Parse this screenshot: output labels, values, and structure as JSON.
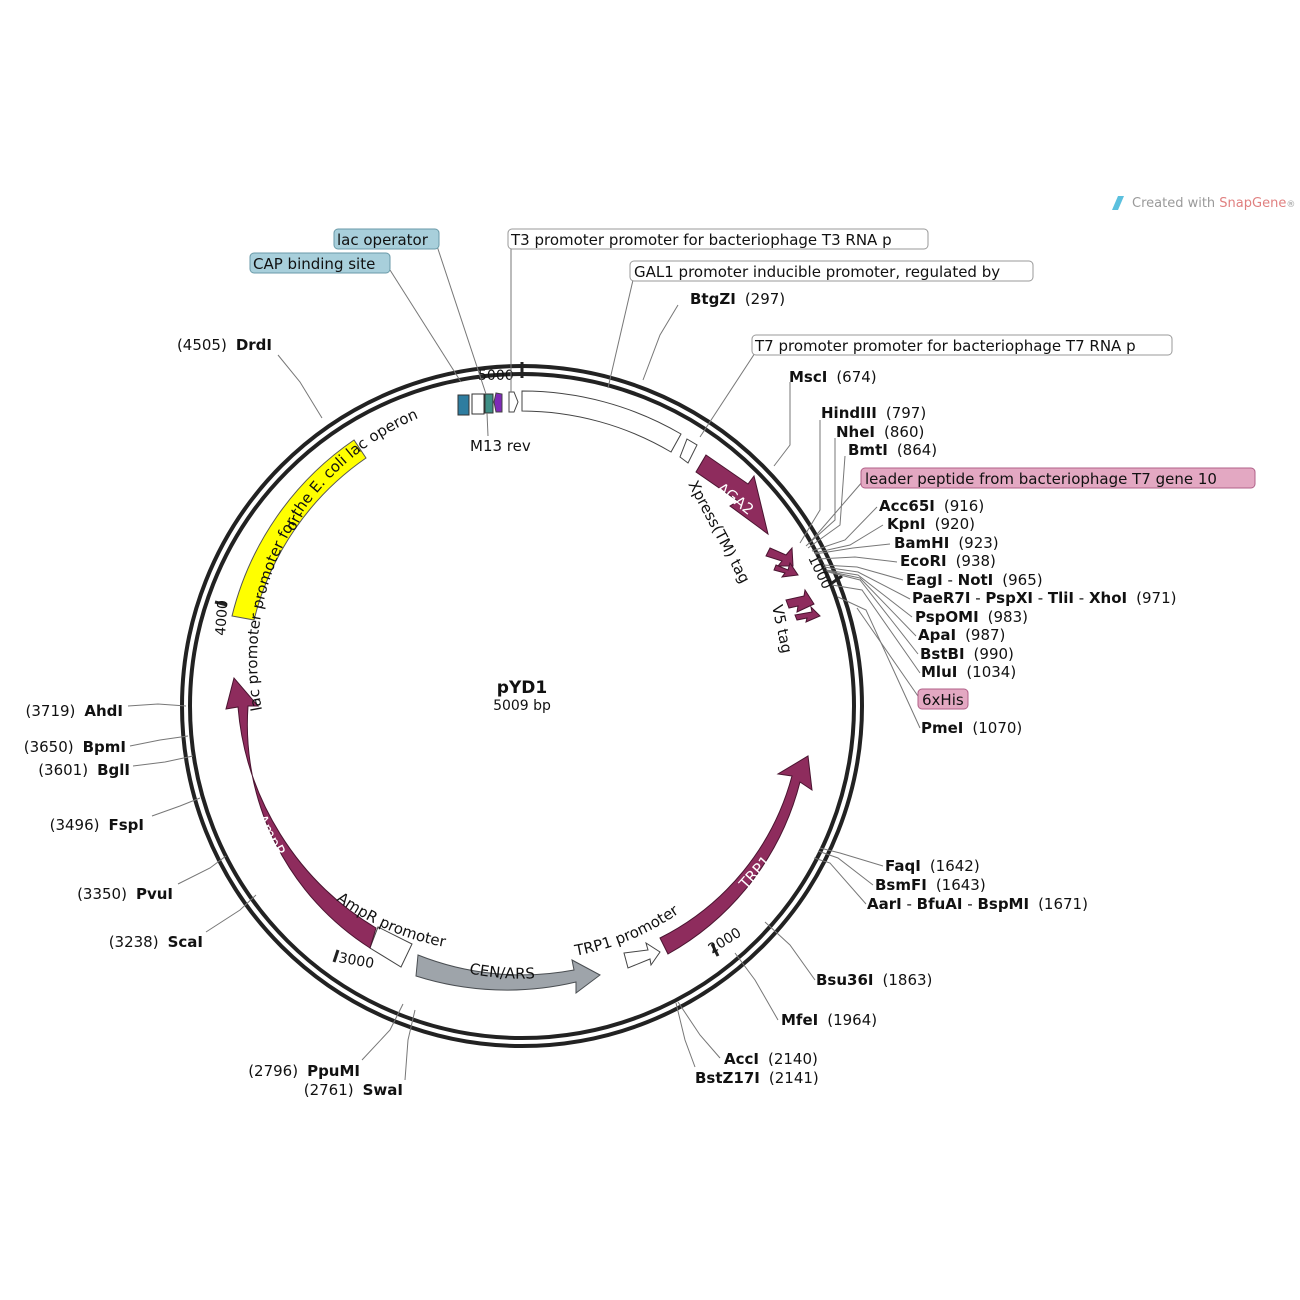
{
  "watermark": {
    "prefix": "Created with ",
    "brand": "SnapGene",
    "reg": "®"
  },
  "plasmid": {
    "name": "pYD1",
    "length": "5009 bp"
  },
  "ticks": [
    "1000",
    "2000",
    "3000",
    "4000",
    "5000"
  ],
  "colors": {
    "orange_bg": "#a8cfdb",
    "pink_bg": "#e3a8c2",
    "arrow_magenta": "#8e2c5d",
    "ori_yellow": "#ffff00",
    "cen_gray": "#9ea4aa",
    "operator_teal": "#2e7da0",
    "m13_purple": "#7e2ab8"
  },
  "callouts": {
    "lac_operator": "lac operator",
    "cap_site": "CAP binding site",
    "t3_promoter": "T3 promoter promoter for bacteriophage T3 RNA p",
    "gal1_promoter": "GAL1 promoter inducible promoter, regulated by",
    "t7_promoter": "T7 promoter promoter for bacteriophage T7 RNA p",
    "leader_peptide": "leader peptide from bacteriophage T7 gene 10",
    "six_his": "6xHis"
  },
  "features": {
    "aga2": "AGA2",
    "xpress": "Xpress(TM) tag",
    "v5": "V5 tag",
    "trp1": "TRP1",
    "trp1_promoter": "TRP1 promoter",
    "cen_ars": "CEN/ARS",
    "ampr_promoter": "AmpR promoter",
    "ampr": "AmpR",
    "ori": "ori",
    "lac_promoter": "lac promoter promoter for the E. coli lac operon",
    "m13_rev": "M13 rev"
  },
  "sites": {
    "btgzi": {
      "name": "BtgZI",
      "pos": "(297)"
    },
    "msci": {
      "name": "MscI",
      "pos": "(674)"
    },
    "hindiii": {
      "name": "HindIII",
      "pos": "(797)"
    },
    "nhei": {
      "name": "NheI",
      "pos": "(860)"
    },
    "bmti": {
      "name": "BmtI",
      "pos": "(864)"
    },
    "acc65i": {
      "name": "Acc65I",
      "pos": "(916)"
    },
    "kpni": {
      "name": "KpnI",
      "pos": "(920)"
    },
    "bamhi": {
      "name": "BamHI",
      "pos": "(923)"
    },
    "ecori": {
      "name": "EcoRI",
      "pos": "(938)"
    },
    "eagi": {
      "name": "EagI",
      "sep": " - ",
      "name2": "NotI",
      "pos": "(965)"
    },
    "paer7i": {
      "name": "PaeR7I",
      "sep": " - ",
      "name2": "PspXI",
      "name3": "TliI",
      "name4": "XhoI",
      "pos": "(971)"
    },
    "pspomi": {
      "name": "PspOMI",
      "pos": "(983)"
    },
    "apai": {
      "name": "ApaI",
      "pos": "(987)"
    },
    "bstbi": {
      "name": "BstBI",
      "pos": "(990)"
    },
    "mlui": {
      "name": "MluI",
      "pos": "(1034)"
    },
    "pmei": {
      "name": "PmeI",
      "pos": "(1070)"
    },
    "faqi": {
      "name": "FaqI",
      "pos": "(1642)"
    },
    "bsmfi": {
      "name": "BsmFI",
      "pos": "(1643)"
    },
    "aari": {
      "name": "AarI",
      "name2": "BfuAI",
      "name3": "BspMI",
      "pos": "(1671)"
    },
    "bsu36i": {
      "name": "Bsu36I",
      "pos": "(1863)"
    },
    "mfei": {
      "name": "MfeI",
      "pos": "(1964)"
    },
    "acci": {
      "name": "AccI",
      "pos": "(2140)"
    },
    "bstz17i": {
      "name": "BstZ17I",
      "pos": "(2141)"
    },
    "ppumi": {
      "name": "PpuMI",
      "pos": "(2796)"
    },
    "swai": {
      "name": "SwaI",
      "pos": "(2761)"
    },
    "scai": {
      "name": "ScaI",
      "pos": "(3238)"
    },
    "pvui": {
      "name": "PvuI",
      "pos": "(3350)"
    },
    "fspi": {
      "name": "FspI",
      "pos": "(3496)"
    },
    "bgli": {
      "name": "BglI",
      "pos": "(3601)"
    },
    "bpmi": {
      "name": "BpmI",
      "pos": "(3650)"
    },
    "ahdi": {
      "name": "AhdI",
      "pos": "(3719)"
    },
    "drdi": {
      "name": "DrdI",
      "pos": "(4505)"
    }
  }
}
